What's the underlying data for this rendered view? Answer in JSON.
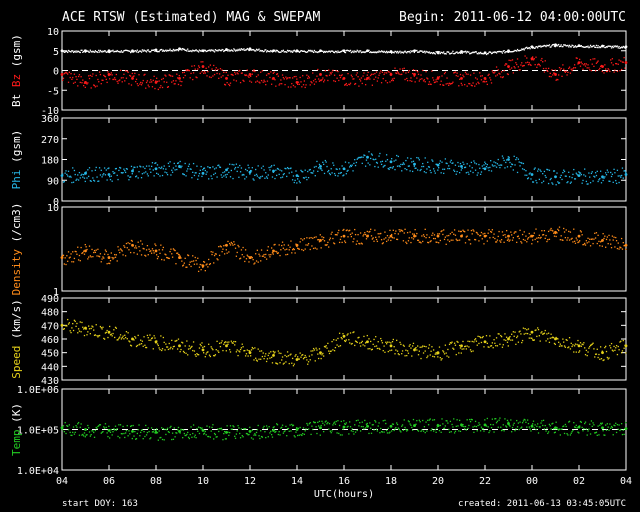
{
  "header": {
    "title": "ACE RTSW (Estimated) MAG & SWEPAM",
    "begin": "Begin: 2011-06-12 04:00:00UTC"
  },
  "footer": {
    "start_doy": "start DOY: 163",
    "created": "created: 2011-06-13 03:45:05UTC"
  },
  "colors": {
    "bt": "#ffffff",
    "bz": "#ff1a1a",
    "phi": "#26b8e8",
    "density": "#ff8c1a",
    "speed": "#e6d21a",
    "temp": "#22cc22",
    "axes": "#ffffff",
    "background": "#000000"
  },
  "chart_data": [
    {
      "id": "mag",
      "type": "scatter",
      "ylabel_parts": [
        {
          "text": "Bt",
          "color": "#ffffff"
        },
        {
          "text": " Bz",
          "color": "#ff1a1a"
        },
        {
          "text": " (gsm)",
          "color": "#ffffff"
        }
      ],
      "ylim": [
        -10,
        10
      ],
      "yticks": [
        "10",
        "5",
        "0",
        "-5",
        "-10"
      ],
      "ytick_values": [
        10,
        5,
        0,
        -5,
        -10
      ],
      "ref_line": 0,
      "ref_dashed": true,
      "series": [
        {
          "name": "Bt",
          "color": "#ffffff",
          "x": [
            0,
            1,
            2,
            3,
            4,
            5,
            6,
            7,
            8,
            9,
            10,
            11,
            12,
            13,
            14,
            15,
            16,
            17,
            18,
            19,
            20,
            21,
            22,
            23,
            24
          ],
          "y": [
            5,
            5,
            5,
            5,
            5.2,
            5.5,
            5,
            5.3,
            5.5,
            5,
            5,
            5,
            5,
            5,
            4.8,
            5,
            4.6,
            4.8,
            4.5,
            5,
            6,
            6.5,
            6.3,
            6.2,
            6
          ]
        },
        {
          "name": "Bz",
          "color": "#ff1a1a",
          "x": [
            0,
            1,
            2,
            3,
            4,
            5,
            6,
            7,
            8,
            9,
            10,
            11,
            12,
            13,
            14,
            15,
            16,
            17,
            18,
            19,
            20,
            21,
            22,
            23,
            24
          ],
          "y": [
            -1,
            -3,
            -1,
            -2,
            -3,
            -2,
            1,
            -2,
            -1,
            -2,
            -3,
            -1,
            -2,
            -2,
            -1,
            -1,
            -2,
            -2,
            -2,
            1,
            3,
            -1,
            2,
            1,
            2
          ]
        }
      ]
    },
    {
      "id": "phi",
      "type": "scatter",
      "ylabel_parts": [
        {
          "text": "Phi",
          "color": "#26b8e8"
        },
        {
          "text": " (gsm)",
          "color": "#ffffff"
        }
      ],
      "ylim": [
        0,
        360
      ],
      "yticks": [
        "360",
        "270",
        "180",
        "90",
        "0"
      ],
      "ytick_values": [
        360,
        270,
        180,
        90,
        0
      ],
      "series": [
        {
          "name": "Phi",
          "color": "#26b8e8",
          "x": [
            0,
            1,
            2,
            3,
            4,
            5,
            6,
            7,
            8,
            9,
            10,
            11,
            12,
            13,
            14,
            15,
            16,
            17,
            18,
            19,
            20,
            21,
            22,
            23,
            24
          ],
          "y": [
            110,
            120,
            115,
            130,
            140,
            150,
            120,
            135,
            125,
            130,
            110,
            150,
            140,
            190,
            170,
            160,
            155,
            150,
            140,
            180,
            115,
            105,
            110,
            105,
            115
          ]
        }
      ]
    },
    {
      "id": "density",
      "type": "scatter",
      "ylabel_parts": [
        {
          "text": "Density",
          "color": "#ff8c1a"
        },
        {
          "text": " (/cm3)",
          "color": "#ffffff"
        }
      ],
      "ylim": [
        1,
        10
      ],
      "log": true,
      "yticks": [
        "10",
        "1"
      ],
      "ytick_values": [
        10,
        1
      ],
      "series": [
        {
          "name": "Density",
          "color": "#ff8c1a",
          "x": [
            0,
            1,
            2,
            3,
            4,
            5,
            6,
            7,
            8,
            9,
            10,
            11,
            12,
            13,
            14,
            15,
            16,
            17,
            18,
            19,
            20,
            21,
            22,
            23,
            24
          ],
          "y": [
            2.5,
            3,
            2.5,
            3.5,
            3,
            2.5,
            2,
            3.5,
            2.5,
            3,
            3.5,
            4,
            4.5,
            4.5,
            4.5,
            4.5,
            4.5,
            4.5,
            4.5,
            4.5,
            4.5,
            5,
            4.5,
            4,
            3.5
          ]
        }
      ]
    },
    {
      "id": "speed",
      "type": "scatter",
      "ylabel_parts": [
        {
          "text": "Speed",
          "color": "#e6d21a"
        },
        {
          "text": " (km/s)",
          "color": "#ffffff"
        }
      ],
      "ylim": [
        430,
        490
      ],
      "yticks": [
        "490",
        "480",
        "470",
        "460",
        "450",
        "440",
        "430"
      ],
      "ytick_values": [
        490,
        480,
        470,
        460,
        450,
        440,
        430
      ],
      "series": [
        {
          "name": "Speed",
          "color": "#e6d21a",
          "x": [
            0,
            1,
            2,
            3,
            4,
            5,
            6,
            7,
            8,
            9,
            10,
            11,
            12,
            13,
            14,
            15,
            16,
            17,
            18,
            19,
            20,
            21,
            22,
            23,
            24
          ],
          "y": [
            470,
            468,
            465,
            460,
            458,
            455,
            452,
            455,
            450,
            448,
            445,
            450,
            462,
            458,
            455,
            452,
            450,
            455,
            458,
            460,
            465,
            460,
            455,
            450,
            455
          ]
        }
      ]
    },
    {
      "id": "temp",
      "type": "scatter",
      "ylabel_parts": [
        {
          "text": "Temp",
          "color": "#22cc22"
        },
        {
          "text": " (K)",
          "color": "#ffffff"
        }
      ],
      "ylim": [
        10000,
        1000000
      ],
      "log": true,
      "yticks": [
        "1.0E+06",
        "1.0E+05",
        "1.0E+04"
      ],
      "ytick_values": [
        1000000,
        100000,
        10000
      ],
      "ref_line": 100000,
      "ref_dashed": true,
      "series": [
        {
          "name": "Temp",
          "color": "#22cc22",
          "x": [
            0,
            1,
            2,
            3,
            4,
            5,
            6,
            7,
            8,
            9,
            10,
            11,
            12,
            13,
            14,
            15,
            16,
            17,
            18,
            19,
            20,
            21,
            22,
            23,
            24
          ],
          "y": [
            110000,
            100000,
            95000,
            90000,
            85000,
            90000,
            95000,
            85000,
            90000,
            95000,
            100000,
            110000,
            115000,
            120000,
            120000,
            125000,
            125000,
            130000,
            130000,
            140000,
            120000,
            110000,
            115000,
            110000,
            105000
          ]
        }
      ]
    }
  ],
  "x_axis": {
    "xlabel": "UTC(hours)",
    "xlim": [
      0,
      24
    ],
    "ticks": [
      "04",
      "06",
      "08",
      "10",
      "12",
      "14",
      "16",
      "18",
      "20",
      "22",
      "00",
      "02",
      "04"
    ]
  }
}
